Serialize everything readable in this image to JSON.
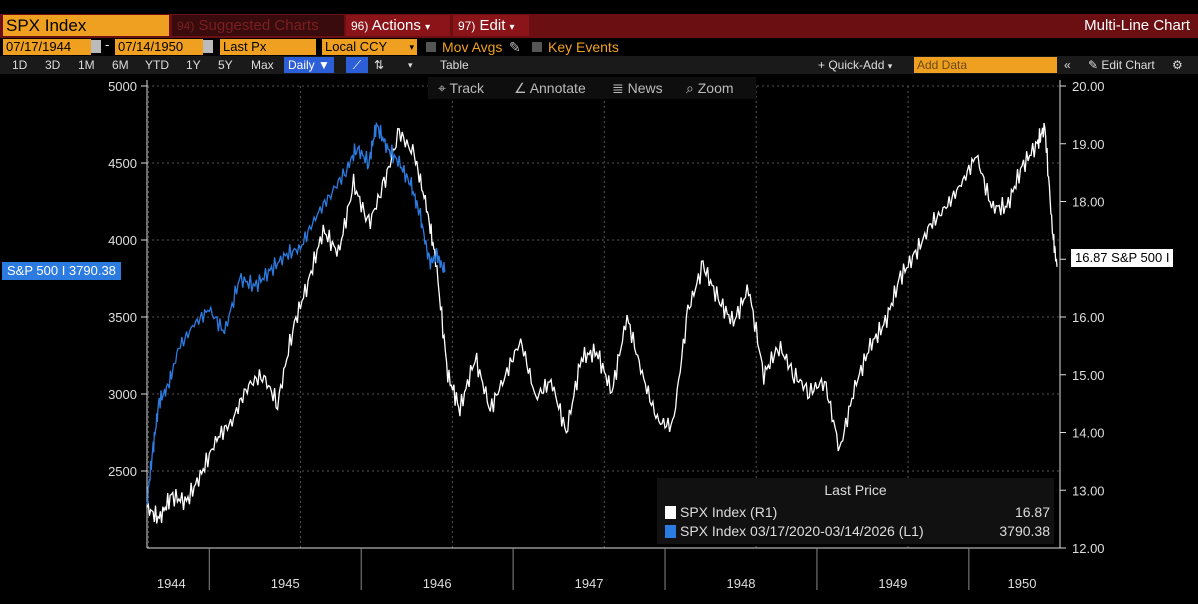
{
  "header": {
    "security": "SPX Index",
    "suggested_num": "94)",
    "suggested_label": "Suggested Charts",
    "actions_num": "96)",
    "actions_label": "Actions",
    "edit_num": "97)",
    "edit_label": "Edit",
    "chart_title": "Multi-Line Chart"
  },
  "params": {
    "start_date": "07/17/1944",
    "end_date": "07/14/1950",
    "field": "Last Px",
    "currency": "Local CCY",
    "mov_avgs": "Mov Avgs",
    "key_events": "Key Events"
  },
  "toolbar": {
    "ranges": [
      "1D",
      "3D",
      "1M",
      "6M",
      "YTD",
      "1Y",
      "5Y",
      "Max"
    ],
    "freq": "Daily",
    "table": "Table",
    "quick_add": "+ Quick-Add",
    "add_data_placeholder": "Add Data",
    "edit_chart": "Edit Chart"
  },
  "tools": {
    "track": "Track",
    "annotate": "Annotate",
    "news": "News",
    "zoom": "Zoom"
  },
  "tags": {
    "left": "S&P 500 I 3790.38",
    "right": "16.87 S&P 500 I"
  },
  "legend": {
    "title": "Last Price",
    "rows": [
      {
        "name": "SPX Index  (R1)",
        "value": "16.87",
        "color": "#ffffff"
      },
      {
        "name": "SPX Index 03/17/2020-03/14/2026    (L1)",
        "value": "3790.38",
        "color": "#2c7be0"
      }
    ]
  },
  "chart_data": {
    "type": "line",
    "x_labels": [
      "1944",
      "1945",
      "1946",
      "1947",
      "1948",
      "1949",
      "1950"
    ],
    "left_axis": {
      "ticks": [
        "5000",
        "4500",
        "4000",
        "3500",
        "3000",
        "2500"
      ],
      "ylim": [
        2000,
        5000
      ]
    },
    "right_axis": {
      "ticks": [
        "20.00",
        "19.00",
        "18.00",
        "17.00",
        "16.00",
        "15.00",
        "14.00",
        "13.00",
        "12.00"
      ],
      "ylim": [
        12,
        20
      ]
    },
    "series": [
      {
        "name": "SPX Index (R1)",
        "axis": "right",
        "color": "#ffffff",
        "x": [
          1944.54,
          1944.62,
          1944.7,
          1944.8,
          1944.9,
          1945.0,
          1945.1,
          1945.2,
          1945.3,
          1945.4,
          1945.5,
          1945.6,
          1945.7,
          1945.8,
          1945.9,
          1946.0,
          1946.1,
          1946.2,
          1946.3,
          1946.38,
          1946.44,
          1946.52,
          1946.6,
          1946.7,
          1946.8,
          1946.9,
          1947.0,
          1947.1,
          1947.2,
          1947.3,
          1947.4,
          1947.5,
          1947.6,
          1947.7,
          1947.8,
          1947.9,
          1948.0,
          1948.1,
          1948.2,
          1948.3,
          1948.4,
          1948.5,
          1948.6,
          1948.7,
          1948.8,
          1948.9,
          1949.0,
          1949.1,
          1949.2,
          1949.3,
          1949.4,
          1949.5,
          1949.6,
          1949.7,
          1949.8,
          1949.9,
          1950.0,
          1950.1,
          1950.2,
          1950.3,
          1950.4,
          1950.45,
          1950.5,
          1950.53
        ],
        "y": [
          12.7,
          12.5,
          12.9,
          12.8,
          13.3,
          13.9,
          14.2,
          14.8,
          15.0,
          14.5,
          15.8,
          16.6,
          17.5,
          17.1,
          18.3,
          17.6,
          18.3,
          19.2,
          18.8,
          17.9,
          17.0,
          15.0,
          14.4,
          15.3,
          14.4,
          15.0,
          15.6,
          14.6,
          14.9,
          14.0,
          15.3,
          15.4,
          14.7,
          16.0,
          15.0,
          14.2,
          14.1,
          16.1,
          16.9,
          16.3,
          15.9,
          16.5,
          15.0,
          15.5,
          15.0,
          14.7,
          14.9,
          13.7,
          14.8,
          15.5,
          15.9,
          16.7,
          17.1,
          17.6,
          17.9,
          18.3,
          18.8,
          17.9,
          17.9,
          18.6,
          19.0,
          19.3,
          17.5,
          16.87
        ]
      },
      {
        "name": "SPX Index 03/17/2020-03/14/2026 (L1)",
        "axis": "left",
        "color": "#2c7be0",
        "x": [
          1944.54,
          1944.58,
          1944.62,
          1944.68,
          1944.75,
          1944.85,
          1944.95,
          1945.05,
          1945.15,
          1945.25,
          1945.35,
          1945.45,
          1945.55,
          1945.65,
          1945.75,
          1945.85,
          1945.92,
          1946.0,
          1946.05,
          1946.12,
          1946.2,
          1946.28,
          1946.34,
          1946.4,
          1946.45,
          1946.5
        ],
        "y": [
          2300,
          2650,
          2950,
          3050,
          3300,
          3450,
          3550,
          3400,
          3750,
          3700,
          3800,
          3900,
          3950,
          4150,
          4300,
          4450,
          4600,
          4500,
          4750,
          4600,
          4500,
          4350,
          4150,
          3850,
          3900,
          3790.38
        ]
      }
    ]
  }
}
